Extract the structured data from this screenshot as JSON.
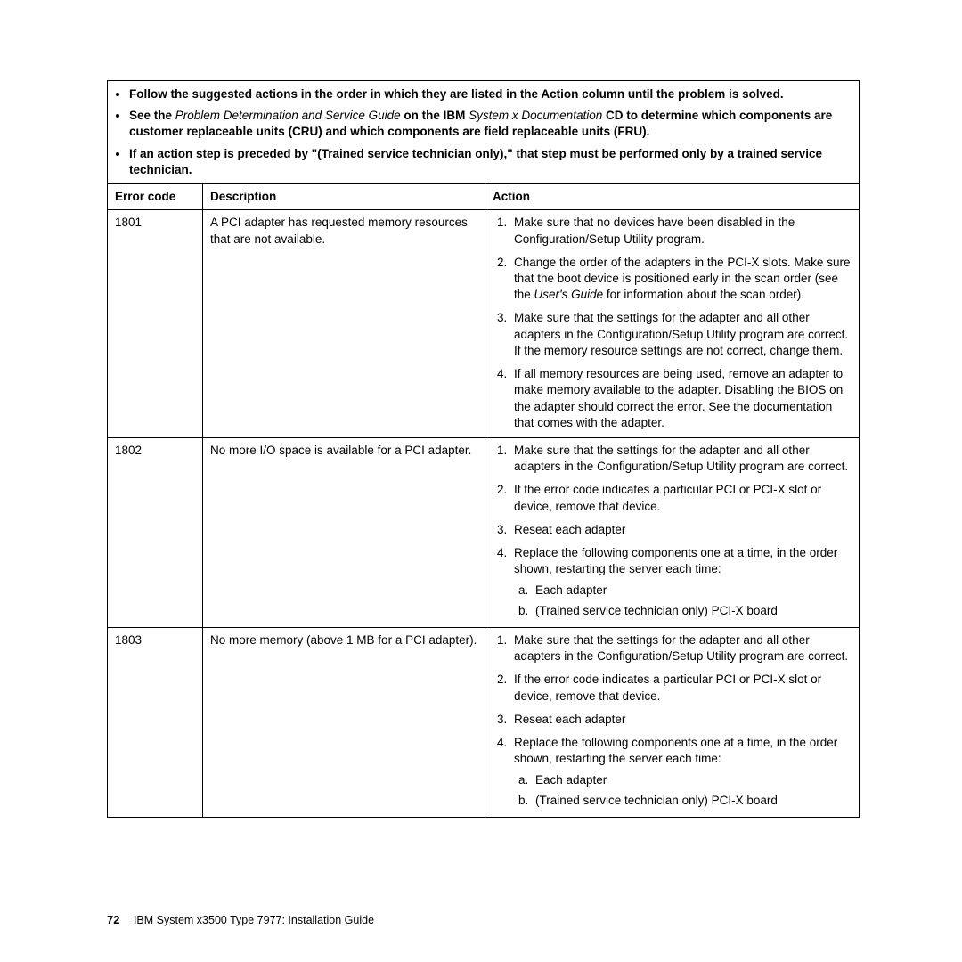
{
  "preamble": {
    "item1": "Follow the suggested actions in the order in which they are listed in the Action column until the problem is solved.",
    "item2_pre": "See the ",
    "item2_i1": "Problem Determination and Service Guide",
    "item2_mid": " on the IBM ",
    "item2_i2": "System x Documentation",
    "item2_post": " CD to determine which components are customer replaceable units (CRU) and which components are field replaceable units (FRU).",
    "item3": "If an action step is preceded by \"(Trained service technician only),\" that step must be performed only by a trained service technician."
  },
  "headers": {
    "code": "Error code",
    "desc": "Description",
    "action": "Action"
  },
  "rows": [
    {
      "code": "1801",
      "desc": "A PCI adapter has requested memory resources that are not available.",
      "actions": [
        {
          "text": "Make sure that no devices have been disabled in the Configuration/Setup Utility program."
        },
        {
          "text_pre": "Change the order of the adapters in the PCI-X slots. Make sure that the boot device is positioned early in the scan order (see the ",
          "italic": "User's Guide",
          "text_post": " for information about the scan order)."
        },
        {
          "text": "Make sure that the settings for the adapter and all other adapters in the Configuration/Setup Utility program are correct. If the memory resource settings are not correct, change them."
        },
        {
          "text": "If all memory resources are being used, remove an adapter to make memory available to the adapter. Disabling the BIOS on the adapter should correct the error. See the documentation that comes with the adapter."
        }
      ]
    },
    {
      "code": "1802",
      "desc": "No more I/O space is available for a PCI adapter.",
      "actions": [
        {
          "text": "Make sure that the settings for the adapter and all other adapters in the Configuration/Setup Utility program are correct."
        },
        {
          "text": "If the error code indicates a particular PCI or PCI-X slot or device, remove that device."
        },
        {
          "text": "Reseat each adapter"
        },
        {
          "text": "Replace the following components one at a time, in the order shown, restarting the server each time:",
          "sub": [
            "Each adapter",
            "(Trained service technician only) PCI-X board"
          ]
        }
      ]
    },
    {
      "code": "1803",
      "desc": "No more memory (above 1 MB for a PCI adapter).",
      "actions": [
        {
          "text": "Make sure that the settings for the adapter and all other adapters in the Configuration/Setup Utility program are correct."
        },
        {
          "text": "If the error code indicates a particular PCI or PCI-X slot or device, remove that device."
        },
        {
          "text": "Reseat each adapter"
        },
        {
          "text": "Replace the following components one at a time, in the order shown, restarting the server each time:",
          "sub": [
            "Each adapter",
            "(Trained service technician only) PCI-X board"
          ]
        }
      ]
    }
  ],
  "footer": {
    "page": "72",
    "text": "IBM System x3500 Type 7977: Installation Guide"
  }
}
